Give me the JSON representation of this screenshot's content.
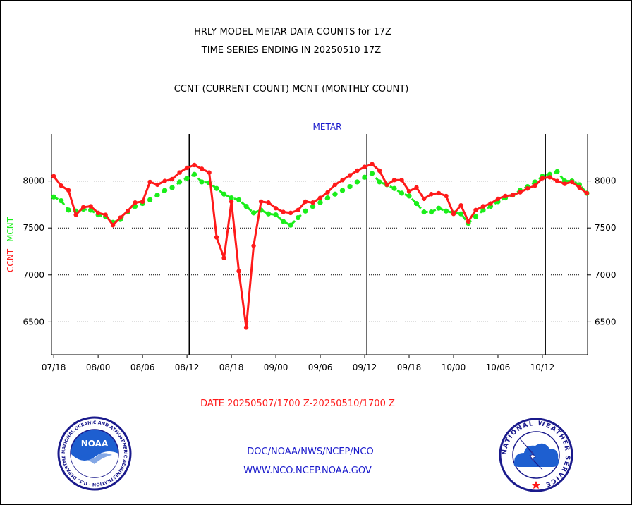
{
  "header": {
    "title_line1": "HRLY MODEL METAR DATA COUNTS for 17Z",
    "title_line2": "TIME SERIES ENDING IN 20250510 17Z",
    "subtitle": "CCNT (CURRENT COUNT) MCNT (MONTHLY COUNT)"
  },
  "footer": {
    "date_range": "DATE 20250507/1700 Z-20250510/1700 Z",
    "org_line": "DOC/NOAA/NWS/NCEP/NCO",
    "url_line": "WWW.NCO.NCEP.NOAA.GOV"
  },
  "logos": {
    "noaa_text": "NOAA",
    "noaa_ring": "NATIONAL OCEANIC AND ATMOSPHERIC ADMINISTRATION · U.S. DEPARTMENT OF COMMERCE ·",
    "nws_ring": "NATIONAL WEATHER SERVICE"
  },
  "colors": {
    "ccnt": "#ff1a1a",
    "mcnt": "#1aee1a",
    "title_blue": "#1a1acc",
    "footer_red": "#ff1a1a",
    "footer_blue": "#1a1acc"
  },
  "chart_data": {
    "type": "line",
    "title": "METAR",
    "ylabel_ccnt": "CCNT",
    "ylabel_mcnt": "MCNT",
    "ylim": [
      6150,
      8500
    ],
    "yticks": [
      6500,
      7000,
      7500,
      8000
    ],
    "grid": "dotted horizontal at y ticks; solid vertical separators",
    "x_tick_labels": [
      "07/18",
      "08/00",
      "08/06",
      "08/12",
      "08/18",
      "09/00",
      "09/06",
      "09/12",
      "09/18",
      "10/00",
      "10/06",
      "10/12"
    ],
    "x_tick_index": [
      0,
      6,
      12,
      18,
      24,
      30,
      36,
      42,
      48,
      54,
      60,
      66
    ],
    "x_range_index": [
      -0.3,
      72.1
    ],
    "day_separator_index": [
      18.3,
      42.3,
      66.4
    ],
    "series": [
      {
        "name": "CCNT",
        "values": [
          8050,
          7950,
          7900,
          7640,
          7720,
          7730,
          7660,
          7640,
          7530,
          7610,
          7680,
          7770,
          7780,
          7990,
          7960,
          8000,
          8020,
          8090,
          8140,
          8170,
          8130,
          8090,
          7400,
          7180,
          7780,
          7040,
          6440,
          7310,
          7780,
          7770,
          7710,
          7670,
          7660,
          7690,
          7780,
          7770,
          7820,
          7880,
          7960,
          8010,
          8060,
          8110,
          8150,
          8180,
          8110,
          7960,
          8010,
          8010,
          7890,
          7930,
          7810,
          7860,
          7870,
          7840,
          7650,
          7740,
          7570,
          7690,
          7730,
          7760,
          7810,
          7840,
          7850,
          7880,
          7920,
          7950,
          8030,
          8040,
          8000,
          7970,
          7990,
          7930,
          7870
        ]
      },
      {
        "name": "MCNT",
        "values": [
          7830,
          7790,
          7690,
          7680,
          7700,
          7690,
          7640,
          7620,
          7560,
          7590,
          7670,
          7730,
          7760,
          7800,
          7850,
          7900,
          7930,
          7990,
          8030,
          8070,
          7990,
          7980,
          7920,
          7860,
          7820,
          7800,
          7730,
          7660,
          7690,
          7650,
          7640,
          7570,
          7530,
          7610,
          7680,
          7730,
          7770,
          7820,
          7860,
          7900,
          7940,
          7990,
          8040,
          8080,
          7990,
          7960,
          7920,
          7870,
          7840,
          7760,
          7670,
          7670,
          7710,
          7680,
          7660,
          7650,
          7550,
          7620,
          7690,
          7730,
          7780,
          7820,
          7850,
          7900,
          7940,
          7990,
          8050,
          8070,
          8100,
          8000,
          8000,
          7960,
          7870
        ]
      }
    ]
  }
}
